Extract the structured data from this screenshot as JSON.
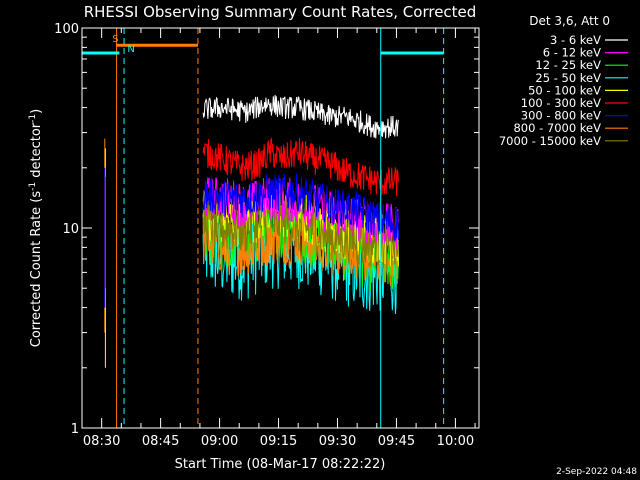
{
  "chart_data": {
    "type": "line",
    "title": "RHESSI Observing Summary Count Rates, Corrected",
    "xlabel": "Start Time (08-Mar-17 08:22:22)",
    "ylabel_main": "Corrected Count Rate (s",
    "ylabel_sup1": "-1",
    "ylabel_mid": " detector",
    "ylabel_sup2": "-1",
    "ylabel_end": ")",
    "y_scale": "log",
    "ylim": [
      1,
      100
    ],
    "y_ticks": [
      {
        "v": 1,
        "label": "1"
      },
      {
        "v": 10,
        "label": "10"
      },
      {
        "v": 100,
        "label": "100"
      }
    ],
    "xlim_min": [
      505,
      606
    ],
    "x_ticks": [
      {
        "v": 510,
        "label": "08:30"
      },
      {
        "v": 525,
        "label": "08:45"
      },
      {
        "v": 540,
        "label": "09:00"
      },
      {
        "v": 555,
        "label": "09:15"
      },
      {
        "v": 570,
        "label": "09:30"
      },
      {
        "v": 585,
        "label": "09:45"
      },
      {
        "v": 600,
        "label": "10:00"
      }
    ],
    "legend_header": "Det 3,6, Att 0",
    "legend_position": "right",
    "series": [
      {
        "name": "3 - 6 keV",
        "color": "#ffffff",
        "base": [
          [
            535.8,
            39
          ],
          [
            541,
            40
          ],
          [
            547,
            38
          ],
          [
            552,
            42
          ],
          [
            556,
            40
          ],
          [
            560,
            40
          ],
          [
            564,
            38
          ],
          [
            568,
            36
          ],
          [
            572,
            36
          ],
          [
            576,
            34
          ],
          [
            579,
            32
          ],
          [
            582,
            32
          ],
          [
            585.5,
            32
          ]
        ]
      },
      {
        "name": "6 - 12 keV",
        "color": "#ff00ff",
        "base": [
          [
            535.8,
            14
          ],
          [
            541,
            14
          ],
          [
            547,
            13
          ],
          [
            552,
            14
          ],
          [
            556,
            14
          ],
          [
            560,
            13.5
          ],
          [
            564,
            13
          ],
          [
            568,
            12
          ],
          [
            572,
            11.5
          ],
          [
            576,
            11
          ],
          [
            580,
            10.5
          ],
          [
            585.5,
            10
          ]
        ]
      },
      {
        "name": "12 - 25 keV",
        "color": "#00ff00",
        "base": [
          [
            535.8,
            10
          ],
          [
            541,
            9
          ],
          [
            547,
            9
          ],
          [
            552,
            10
          ],
          [
            556,
            10
          ],
          [
            560,
            10
          ],
          [
            564,
            9.5
          ],
          [
            568,
            9
          ],
          [
            572,
            8
          ],
          [
            576,
            7.5
          ],
          [
            580,
            7
          ],
          [
            585.5,
            7
          ]
        ]
      },
      {
        "name": "25 - 50 keV",
        "color": "#00ffff",
        "base": [
          [
            535.8,
            8
          ],
          [
            541,
            7
          ],
          [
            547,
            7
          ],
          [
            552,
            8
          ],
          [
            556,
            8
          ],
          [
            560,
            8
          ],
          [
            564,
            7.5
          ],
          [
            568,
            7
          ],
          [
            572,
            6.5
          ],
          [
            576,
            6
          ],
          [
            580,
            6
          ],
          [
            585.5,
            6
          ]
        ]
      },
      {
        "name": "50 - 100 keV",
        "color": "#ffff00",
        "base": [
          [
            535.8,
            12
          ],
          [
            541,
            11
          ],
          [
            547,
            11
          ],
          [
            552,
            12
          ],
          [
            556,
            12
          ],
          [
            560,
            11
          ],
          [
            564,
            11
          ],
          [
            568,
            10
          ],
          [
            572,
            9.5
          ],
          [
            576,
            9
          ],
          [
            580,
            9
          ],
          [
            585.5,
            8.5
          ]
        ]
      },
      {
        "name": "100 - 300 keV",
        "color": "#ff0000",
        "base": [
          [
            535.8,
            24
          ],
          [
            541,
            22
          ],
          [
            546,
            20
          ],
          [
            550,
            21
          ],
          [
            553,
            24
          ],
          [
            556,
            22
          ],
          [
            560,
            24
          ],
          [
            564,
            22
          ],
          [
            568,
            21
          ],
          [
            572,
            19
          ],
          [
            576,
            18
          ],
          [
            580,
            17
          ],
          [
            585.5,
            17
          ]
        ]
      },
      {
        "name": "300 - 800 keV",
        "color": "#0000ff",
        "base": [
          [
            535.8,
            15
          ],
          [
            541,
            14
          ],
          [
            547,
            14
          ],
          [
            552,
            15
          ],
          [
            556,
            15
          ],
          [
            560,
            15
          ],
          [
            564,
            14
          ],
          [
            568,
            13
          ],
          [
            572,
            12.5
          ],
          [
            576,
            12
          ],
          [
            580,
            11
          ],
          [
            585.5,
            10.5
          ]
        ]
      },
      {
        "name": "800 - 7000 keV",
        "color": "#ff8000",
        "base": [
          [
            535.8,
            9
          ],
          [
            541,
            8
          ],
          [
            547,
            8
          ],
          [
            552,
            9
          ],
          [
            556,
            9
          ],
          [
            560,
            9
          ],
          [
            564,
            8.5
          ],
          [
            568,
            8
          ],
          [
            572,
            8
          ],
          [
            576,
            7.5
          ],
          [
            580,
            7
          ],
          [
            585.5,
            7
          ]
        ]
      },
      {
        "name": "7000 - 15000 keV",
        "color": "#808000",
        "base": [
          [
            535.8,
            11
          ],
          [
            541,
            10
          ],
          [
            547,
            10
          ],
          [
            552,
            11
          ],
          [
            556,
            11
          ],
          [
            560,
            10
          ],
          [
            564,
            10
          ],
          [
            568,
            9
          ],
          [
            572,
            9
          ],
          [
            576,
            8.5
          ],
          [
            580,
            8.5
          ],
          [
            585.5,
            8
          ]
        ]
      }
    ],
    "early_spike": {
      "x": 510.8,
      "ranges": [
        [
          3,
          28
        ],
        [
          2,
          25
        ],
        [
          4,
          20
        ],
        [
          5,
          18
        ]
      ]
    },
    "annotations": [
      {
        "label": "S",
        "color": "#ff8000",
        "text_x": 513.5,
        "text_value": 85
      },
      {
        "label": "N",
        "color": "#00ffff",
        "text_x": 517.5,
        "text_value": 76
      }
    ],
    "flag_bars": [
      {
        "color": "#ff8000",
        "from": 513.8,
        "to": 534.5,
        "value": 82
      },
      {
        "color": "#00ffff",
        "from": 505,
        "to": 514.5,
        "value": 75
      },
      {
        "color": "#00ffff",
        "from": 581,
        "to": 597,
        "value": 75
      }
    ],
    "vlines": [
      {
        "x": 513.8,
        "color": "#ff8000",
        "dash": false
      },
      {
        "x": 515.7,
        "color": "#00ffff",
        "dash": true
      },
      {
        "x": 534.5,
        "color": "#ff8000",
        "dash": true
      },
      {
        "x": 581,
        "color": "#00ffff",
        "dash": false
      },
      {
        "x": 597,
        "color": "#00ffff",
        "dash": true
      }
    ]
  },
  "footer": {
    "timestamp": "2-Sep-2022 04:48"
  }
}
